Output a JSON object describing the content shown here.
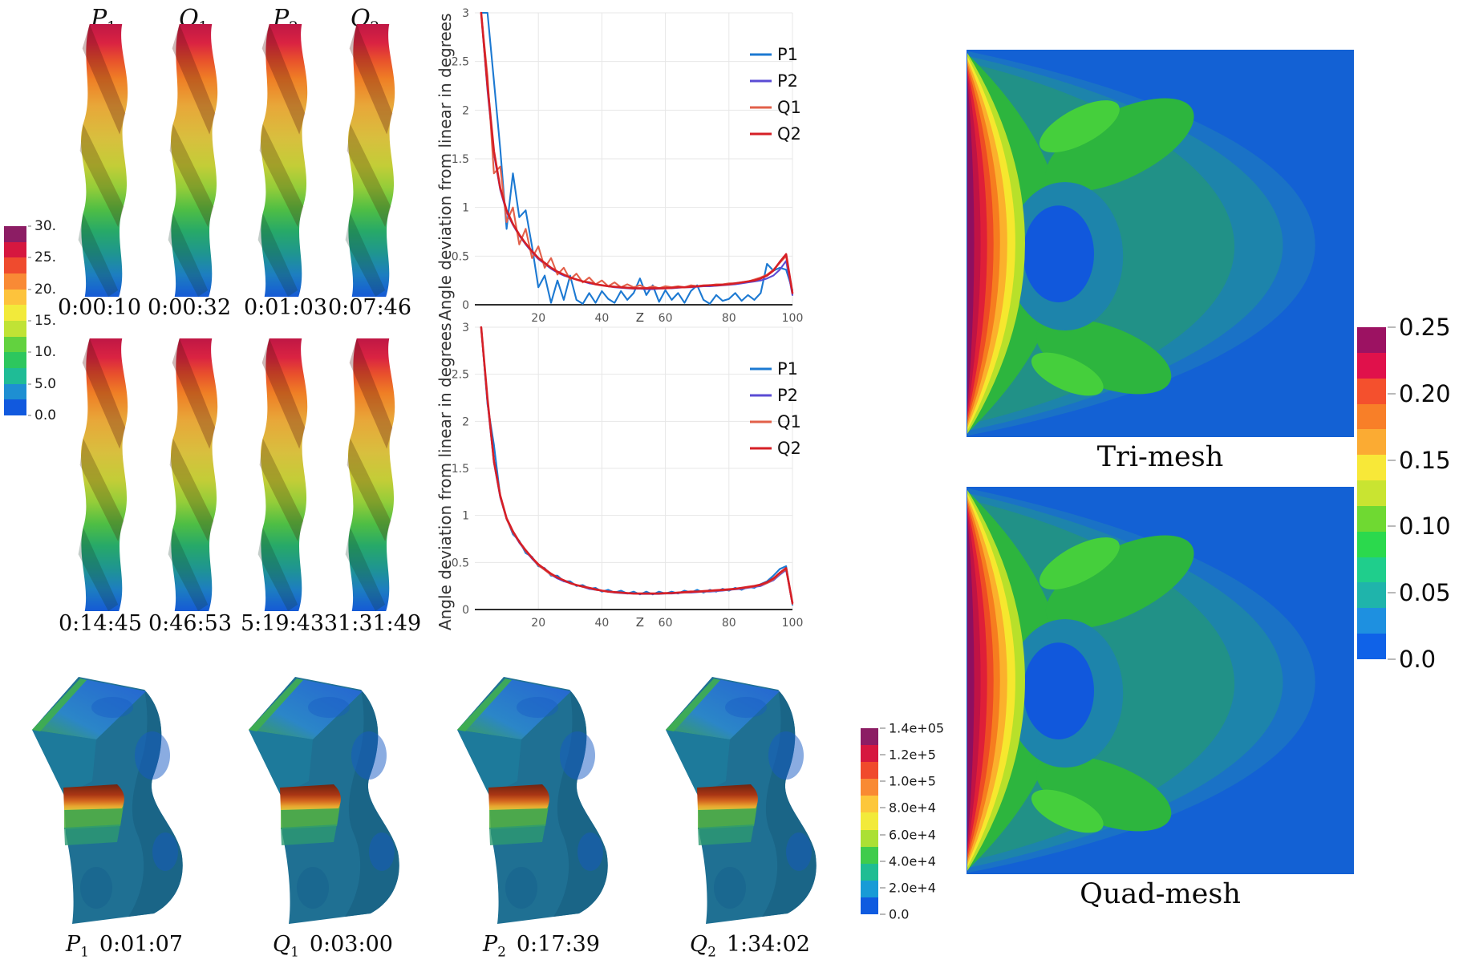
{
  "twist_panel": {
    "headers": [
      {
        "base": "P",
        "sub": "1"
      },
      {
        "base": "Q",
        "sub": "1"
      },
      {
        "base": "P",
        "sub": "2"
      },
      {
        "base": "Q",
        "sub": "2"
      }
    ],
    "row1_times": [
      "0:00:10",
      "0:00:32",
      "0:01:03",
      "0:07:46"
    ],
    "row2_times": [
      "0:14:45",
      "0:46:53",
      "5:19:43",
      "31:31:49"
    ],
    "colorbar": {
      "labels": [
        "30.",
        "25.",
        "20.",
        "15.",
        "10.",
        "5.0",
        "0.0"
      ],
      "colors": [
        "#8c1d64",
        "#d6173f",
        "#ef4b2e",
        "#f98a35",
        "#fdc33c",
        "#f2ea3a",
        "#c0e335",
        "#62d23f",
        "#2dc75e",
        "#1fbc96",
        "#1e8fd2",
        "#1159de"
      ]
    }
  },
  "stress_panel": {
    "captions": [
      {
        "base": "P",
        "sub": "1",
        "time": "0:01:07"
      },
      {
        "base": "Q",
        "sub": "1",
        "time": "0:03:00"
      },
      {
        "base": "P",
        "sub": "2",
        "time": "0:17:39"
      },
      {
        "base": "Q",
        "sub": "2",
        "time": "1:34:02"
      }
    ],
    "colorbar": {
      "labels": [
        "1.4e+05",
        "1.2e+5",
        "1.0e+5",
        "8.0e+4",
        "6.0e+4",
        "4.0e+4",
        "2.0e+4",
        "0.0"
      ],
      "colors": [
        "#8c1d64",
        "#d6173f",
        "#f04a2c",
        "#f98a33",
        "#fdc73b",
        "#f2ea3a",
        "#abe034",
        "#3fcc4c",
        "#1fbd93",
        "#189bd6",
        "#0f5be0"
      ]
    }
  },
  "mesh_panel": {
    "tri_title": "Tri-mesh",
    "quad_title": "Quad-mesh",
    "colorbar": {
      "labels": [
        "0.25",
        "0.20",
        "0.15",
        "0.10",
        "0.05",
        "0.0"
      ],
      "colors": [
        "#9c1262",
        "#e0114b",
        "#f4502d",
        "#f87f28",
        "#fbab33",
        "#f8e838",
        "#c9e431",
        "#6fd932",
        "#2bd94d",
        "#1fce8c",
        "#1fb4ab",
        "#1e90e0",
        "#0f62e8"
      ]
    }
  },
  "chart_data": [
    {
      "type": "line",
      "title": "",
      "xlabel": "Z",
      "ylabel": "Angle deviation from linear in degrees",
      "xlim": [
        0,
        100
      ],
      "ylim": [
        0,
        3
      ],
      "xticks": [
        20,
        40,
        60,
        80,
        100
      ],
      "yticks": [
        0,
        0.5,
        1,
        1.5,
        2,
        2.5,
        3
      ],
      "grid": true,
      "legend_position": "top-right",
      "x": [
        2,
        4,
        6,
        8,
        10,
        12,
        14,
        16,
        18,
        20,
        22,
        24,
        26,
        28,
        30,
        32,
        34,
        36,
        38,
        40,
        42,
        44,
        46,
        48,
        50,
        52,
        54,
        56,
        58,
        60,
        62,
        64,
        66,
        68,
        70,
        72,
        74,
        76,
        78,
        80,
        82,
        84,
        86,
        88,
        90,
        92,
        94,
        96,
        98,
        100
      ],
      "series": [
        {
          "name": "P1",
          "color": "#1c79d2",
          "values": [
            3.4,
            3.1,
            2.3,
            1.6,
            0.78,
            1.35,
            0.9,
            0.97,
            0.6,
            0.18,
            0.3,
            0.02,
            0.25,
            0.05,
            0.3,
            0.05,
            0.01,
            0.12,
            0.02,
            0.14,
            0.06,
            0.02,
            0.14,
            0.05,
            0.12,
            0.27,
            0.1,
            0.2,
            0.03,
            0.15,
            0.05,
            0.12,
            0.02,
            0.14,
            0.2,
            0.05,
            0.01,
            0.1,
            0.04,
            0.06,
            0.12,
            0.04,
            0.1,
            0.05,
            0.12,
            0.42,
            0.35,
            0.38,
            0.36,
            0.15
          ]
        },
        {
          "name": "P2",
          "color": "#5a4bd4",
          "values": [
            3.3,
            2.2,
            1.55,
            1.18,
            0.95,
            0.82,
            0.71,
            0.62,
            0.54,
            0.47,
            0.42,
            0.37,
            0.33,
            0.3,
            0.28,
            0.26,
            0.24,
            0.22,
            0.21,
            0.2,
            0.19,
            0.18,
            0.175,
            0.17,
            0.165,
            0.165,
            0.16,
            0.16,
            0.165,
            0.17,
            0.17,
            0.175,
            0.18,
            0.18,
            0.185,
            0.19,
            0.19,
            0.195,
            0.2,
            0.205,
            0.21,
            0.22,
            0.23,
            0.24,
            0.25,
            0.27,
            0.3,
            0.36,
            0.45,
            0.1
          ]
        },
        {
          "name": "Q1",
          "color": "#e2604a",
          "values": [
            3.2,
            2.35,
            1.35,
            1.42,
            0.85,
            1.0,
            0.62,
            0.78,
            0.48,
            0.6,
            0.38,
            0.48,
            0.31,
            0.38,
            0.26,
            0.32,
            0.23,
            0.28,
            0.21,
            0.25,
            0.19,
            0.23,
            0.18,
            0.21,
            0.18,
            0.2,
            0.17,
            0.19,
            0.17,
            0.19,
            0.18,
            0.19,
            0.18,
            0.2,
            0.19,
            0.2,
            0.2,
            0.21,
            0.21,
            0.22,
            0.22,
            0.23,
            0.24,
            0.26,
            0.28,
            0.31,
            0.36,
            0.43,
            0.5,
            0.13
          ]
        },
        {
          "name": "Q2",
          "color": "#d61f26",
          "values": [
            3.5,
            2.25,
            1.58,
            1.2,
            0.97,
            0.83,
            0.72,
            0.63,
            0.55,
            0.48,
            0.43,
            0.38,
            0.34,
            0.31,
            0.28,
            0.26,
            0.24,
            0.23,
            0.21,
            0.2,
            0.19,
            0.185,
            0.18,
            0.175,
            0.17,
            0.17,
            0.17,
            0.17,
            0.17,
            0.17,
            0.175,
            0.18,
            0.18,
            0.185,
            0.19,
            0.195,
            0.2,
            0.2,
            0.205,
            0.21,
            0.22,
            0.23,
            0.24,
            0.25,
            0.27,
            0.3,
            0.35,
            0.44,
            0.52,
            0.12
          ]
        }
      ]
    },
    {
      "type": "line",
      "title": "",
      "xlabel": "Z",
      "ylabel": "Angle deviation from linear in degrees",
      "xlim": [
        0,
        100
      ],
      "ylim": [
        0,
        3
      ],
      "xticks": [
        20,
        40,
        60,
        80,
        100
      ],
      "yticks": [
        0,
        0.5,
        1,
        1.5,
        2,
        2.5,
        3
      ],
      "grid": true,
      "legend_position": "top-right",
      "x": [
        2,
        4,
        6,
        8,
        10,
        12,
        14,
        16,
        18,
        20,
        22,
        24,
        26,
        28,
        30,
        32,
        34,
        36,
        38,
        40,
        42,
        44,
        46,
        48,
        50,
        52,
        54,
        56,
        58,
        60,
        62,
        64,
        66,
        68,
        70,
        72,
        74,
        76,
        78,
        80,
        82,
        84,
        86,
        88,
        90,
        92,
        94,
        96,
        98,
        100
      ],
      "series": [
        {
          "name": "P1",
          "color": "#1c79d2",
          "values": [
            3.3,
            2.18,
            1.75,
            1.2,
            0.97,
            0.8,
            0.73,
            0.6,
            0.56,
            0.46,
            0.44,
            0.36,
            0.36,
            0.3,
            0.3,
            0.25,
            0.26,
            0.22,
            0.23,
            0.19,
            0.21,
            0.18,
            0.2,
            0.17,
            0.19,
            0.16,
            0.19,
            0.16,
            0.19,
            0.17,
            0.19,
            0.17,
            0.2,
            0.18,
            0.21,
            0.18,
            0.21,
            0.19,
            0.22,
            0.2,
            0.23,
            0.21,
            0.24,
            0.23,
            0.27,
            0.3,
            0.36,
            0.43,
            0.46,
            0.05
          ]
        },
        {
          "name": "P2",
          "color": "#5a4bd4",
          "values": [
            3.3,
            2.2,
            1.56,
            1.19,
            0.96,
            0.82,
            0.71,
            0.62,
            0.54,
            0.47,
            0.42,
            0.37,
            0.33,
            0.3,
            0.28,
            0.26,
            0.24,
            0.22,
            0.21,
            0.2,
            0.19,
            0.18,
            0.175,
            0.17,
            0.17,
            0.165,
            0.165,
            0.165,
            0.165,
            0.17,
            0.17,
            0.175,
            0.18,
            0.18,
            0.185,
            0.19,
            0.19,
            0.195,
            0.2,
            0.21,
            0.215,
            0.22,
            0.23,
            0.24,
            0.25,
            0.28,
            0.31,
            0.37,
            0.42,
            0.06
          ]
        },
        {
          "name": "Q1",
          "color": "#e2604a",
          "values": [
            3.2,
            2.22,
            1.57,
            1.2,
            0.96,
            0.82,
            0.72,
            0.62,
            0.55,
            0.47,
            0.42,
            0.37,
            0.34,
            0.31,
            0.28,
            0.26,
            0.24,
            0.23,
            0.21,
            0.2,
            0.19,
            0.185,
            0.18,
            0.175,
            0.17,
            0.17,
            0.17,
            0.17,
            0.17,
            0.17,
            0.175,
            0.18,
            0.18,
            0.185,
            0.19,
            0.19,
            0.195,
            0.2,
            0.205,
            0.21,
            0.22,
            0.225,
            0.235,
            0.245,
            0.26,
            0.28,
            0.32,
            0.38,
            0.43,
            0.06
          ]
        },
        {
          "name": "Q2",
          "color": "#d61f26",
          "values": [
            3.4,
            2.24,
            1.58,
            1.21,
            0.97,
            0.83,
            0.72,
            0.63,
            0.55,
            0.48,
            0.43,
            0.38,
            0.34,
            0.31,
            0.28,
            0.26,
            0.245,
            0.23,
            0.215,
            0.2,
            0.19,
            0.185,
            0.18,
            0.175,
            0.17,
            0.17,
            0.17,
            0.17,
            0.17,
            0.175,
            0.175,
            0.18,
            0.185,
            0.19,
            0.19,
            0.195,
            0.2,
            0.205,
            0.21,
            0.215,
            0.22,
            0.23,
            0.24,
            0.25,
            0.265,
            0.29,
            0.33,
            0.39,
            0.44,
            0.07
          ]
        }
      ]
    }
  ]
}
